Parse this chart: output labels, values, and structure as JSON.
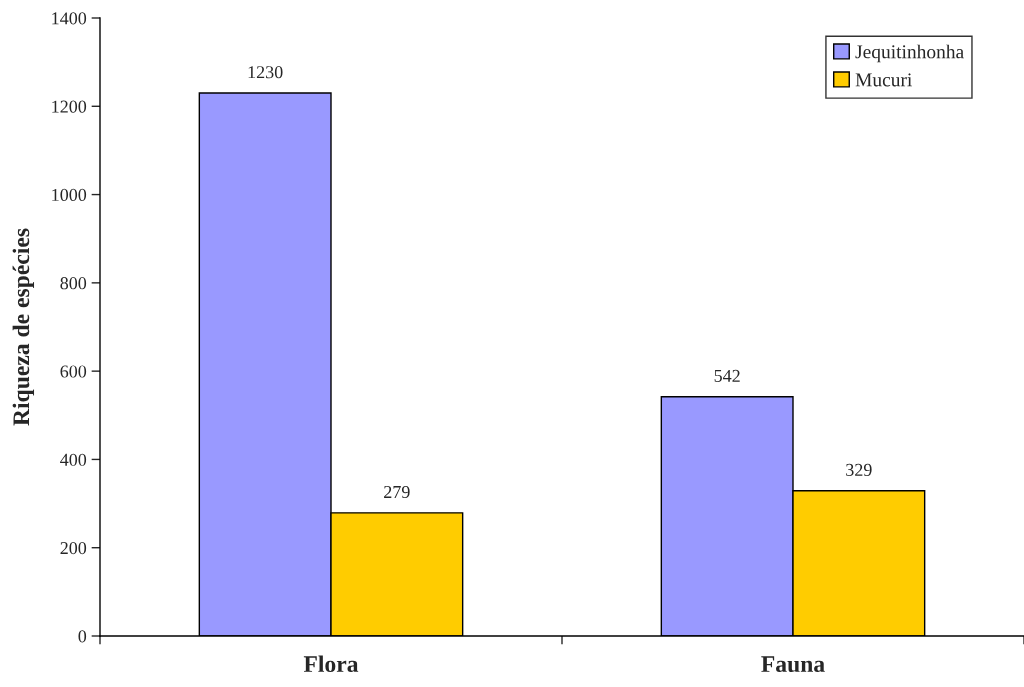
{
  "chart_data": {
    "type": "bar",
    "ylabel": "Riqueza de espécies",
    "categories": [
      "Flora",
      "Fauna"
    ],
    "series": [
      {
        "name": "Jequitinhonha",
        "color": "#9999ff",
        "values": [
          1230,
          542
        ]
      },
      {
        "name": "Mucuri",
        "color": "#ffcc00",
        "values": [
          279,
          329
        ]
      }
    ],
    "ylim": [
      0,
      1400
    ],
    "yticks": [
      0,
      200,
      400,
      600,
      800,
      1000,
      1200,
      1400
    ],
    "data_labels": true,
    "legend": "top right",
    "grid": false
  }
}
